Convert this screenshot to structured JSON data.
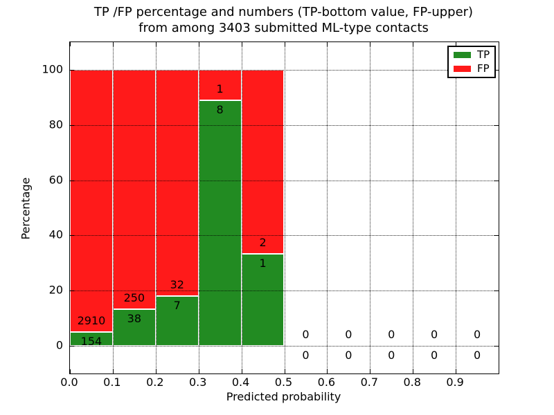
{
  "chart_data": {
    "type": "bar",
    "stacked": true,
    "title_line1": "TP /FP percentage and numbers (TP-bottom value, FP-upper)",
    "title_line2": "from among 3403 submitted ML-type contacts",
    "xlabel": "Predicted probability",
    "ylabel": "Percentage",
    "xlim": [
      0.0,
      1.0
    ],
    "ylim": [
      -10,
      110
    ],
    "x_tick_values": [
      0.0,
      0.1,
      0.2,
      0.3,
      0.4,
      0.5,
      0.6,
      0.7,
      0.8,
      0.9
    ],
    "x_tick_labels": [
      "0.0",
      "0.1",
      "0.2",
      "0.3",
      "0.4",
      "0.5",
      "0.6",
      "0.7",
      "0.8",
      "0.9"
    ],
    "y_tick_values": [
      0,
      20,
      40,
      60,
      80,
      100
    ],
    "y_tick_labels": [
      "0",
      "20",
      "40",
      "60",
      "80",
      "100"
    ],
    "grid": true,
    "grid_style": "dotted",
    "legend": [
      {
        "label": "TP",
        "color": "#228B22"
      },
      {
        "label": "FP",
        "color": "#FF1A1A"
      }
    ],
    "legend_position": "upper right",
    "bins": [
      {
        "start": 0.0,
        "end": 0.1,
        "tp": 154,
        "fp": 2910
      },
      {
        "start": 0.1,
        "end": 0.2,
        "tp": 38,
        "fp": 250
      },
      {
        "start": 0.2,
        "end": 0.3,
        "tp": 7,
        "fp": 32
      },
      {
        "start": 0.3,
        "end": 0.4,
        "tp": 8,
        "fp": 1
      },
      {
        "start": 0.4,
        "end": 0.5,
        "tp": 1,
        "fp": 2
      },
      {
        "start": 0.5,
        "end": 0.6,
        "tp": 0,
        "fp": 0
      },
      {
        "start": 0.6,
        "end": 0.7,
        "tp": 0,
        "fp": 0
      },
      {
        "start": 0.7,
        "end": 0.8,
        "tp": 0,
        "fp": 0
      },
      {
        "start": 0.8,
        "end": 0.9,
        "tp": 0,
        "fp": 0
      },
      {
        "start": 0.9,
        "end": 1.0,
        "tp": 0,
        "fp": 0
      }
    ],
    "colors": {
      "tp": "#228B22",
      "fp": "#FF1A1A",
      "bar_edge": "#FFFFFF",
      "text": "#000000",
      "grid": "#000000",
      "background": "#FFFFFF"
    }
  }
}
